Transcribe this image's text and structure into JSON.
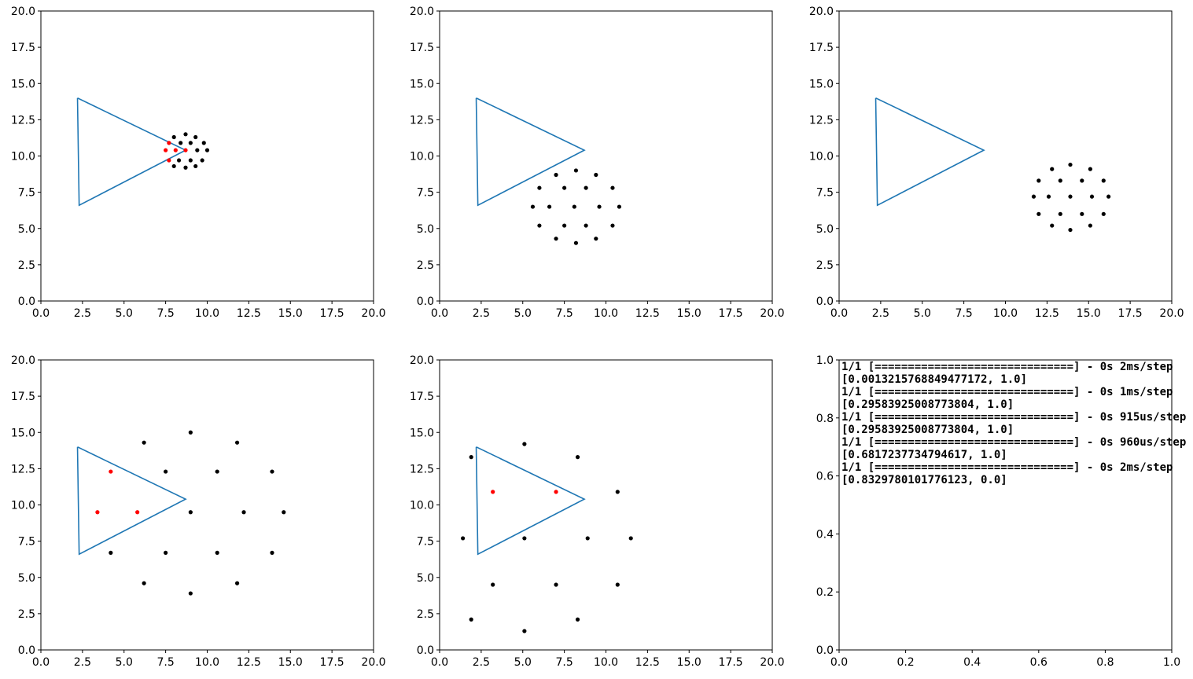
{
  "chart_data": [
    {
      "type": "scatter",
      "xlim": [
        0,
        20
      ],
      "ylim": [
        0,
        20
      ],
      "xticks": [
        "0.0",
        "2.5",
        "5.0",
        "7.5",
        "10.0",
        "12.5",
        "15.0",
        "17.5",
        "20.0"
      ],
      "yticks": [
        "0.0",
        "2.5",
        "5.0",
        "7.5",
        "10.0",
        "12.5",
        "15.0",
        "17.5",
        "20.0"
      ],
      "grid": false,
      "colors": {
        "triangle": "#1f77b4",
        "outside": "#000000",
        "inside": "#ff0000"
      },
      "triangle": [
        [
          2.2,
          14.0
        ],
        [
          2.3,
          6.6
        ],
        [
          8.7,
          10.4
        ]
      ],
      "points_outside": [
        [
          8.7,
          11.5
        ],
        [
          8.0,
          11.3
        ],
        [
          9.3,
          11.3
        ],
        [
          8.4,
          10.9
        ],
        [
          9.0,
          10.9
        ],
        [
          9.8,
          10.9
        ],
        [
          9.4,
          10.4
        ],
        [
          10.0,
          10.4
        ],
        [
          8.3,
          9.7
        ],
        [
          9.0,
          9.7
        ],
        [
          9.7,
          9.7
        ],
        [
          8.0,
          9.3
        ],
        [
          9.3,
          9.3
        ],
        [
          8.7,
          9.2
        ]
      ],
      "points_inside": [
        [
          7.7,
          10.9
        ],
        [
          7.5,
          10.4
        ],
        [
          8.1,
          10.4
        ],
        [
          8.7,
          10.4
        ],
        [
          7.7,
          9.7
        ]
      ]
    },
    {
      "type": "scatter",
      "xlim": [
        0,
        20
      ],
      "ylim": [
        0,
        20
      ],
      "xticks": [
        "0.0",
        "2.5",
        "5.0",
        "7.5",
        "10.0",
        "12.5",
        "15.0",
        "17.5",
        "20.0"
      ],
      "yticks": [
        "0.0",
        "2.5",
        "5.0",
        "7.5",
        "10.0",
        "12.5",
        "15.0",
        "17.5",
        "20.0"
      ],
      "grid": false,
      "colors": {
        "triangle": "#1f77b4",
        "outside": "#000000",
        "inside": "#ff0000"
      },
      "triangle": [
        [
          2.2,
          14.0
        ],
        [
          2.3,
          6.6
        ],
        [
          8.7,
          10.4
        ]
      ],
      "points_outside": [
        [
          8.2,
          9.0
        ],
        [
          7.0,
          8.7
        ],
        [
          9.4,
          8.7
        ],
        [
          6.0,
          7.8
        ],
        [
          7.5,
          7.8
        ],
        [
          8.8,
          7.8
        ],
        [
          10.4,
          7.8
        ],
        [
          5.6,
          6.5
        ],
        [
          6.6,
          6.5
        ],
        [
          8.1,
          6.5
        ],
        [
          9.6,
          6.5
        ],
        [
          10.8,
          6.5
        ],
        [
          6.0,
          5.2
        ],
        [
          7.5,
          5.2
        ],
        [
          8.8,
          5.2
        ],
        [
          10.4,
          5.2
        ],
        [
          7.0,
          4.3
        ],
        [
          9.4,
          4.3
        ],
        [
          8.2,
          4.0
        ]
      ],
      "points_inside": []
    },
    {
      "type": "scatter",
      "xlim": [
        0,
        20
      ],
      "ylim": [
        0,
        20
      ],
      "xticks": [
        "0.0",
        "2.5",
        "5.0",
        "7.5",
        "10.0",
        "12.5",
        "15.0",
        "17.5",
        "20.0"
      ],
      "yticks": [
        "0.0",
        "2.5",
        "5.0",
        "7.5",
        "10.0",
        "12.5",
        "15.0",
        "17.5",
        "20.0"
      ],
      "grid": false,
      "colors": {
        "triangle": "#1f77b4",
        "outside": "#000000",
        "inside": "#ff0000"
      },
      "triangle": [
        [
          2.2,
          14.0
        ],
        [
          2.3,
          6.6
        ],
        [
          8.7,
          10.4
        ]
      ],
      "points_outside": [
        [
          13.9,
          9.4
        ],
        [
          12.8,
          9.1
        ],
        [
          15.1,
          9.1
        ],
        [
          12.0,
          8.3
        ],
        [
          13.3,
          8.3
        ],
        [
          14.6,
          8.3
        ],
        [
          15.9,
          8.3
        ],
        [
          11.7,
          7.2
        ],
        [
          12.6,
          7.2
        ],
        [
          13.9,
          7.2
        ],
        [
          15.2,
          7.2
        ],
        [
          16.2,
          7.2
        ],
        [
          12.0,
          6.0
        ],
        [
          13.3,
          6.0
        ],
        [
          14.6,
          6.0
        ],
        [
          15.9,
          6.0
        ],
        [
          12.8,
          5.2
        ],
        [
          15.1,
          5.2
        ],
        [
          13.9,
          4.9
        ]
      ],
      "points_inside": []
    },
    {
      "type": "scatter",
      "xlim": [
        0,
        20
      ],
      "ylim": [
        0,
        20
      ],
      "xticks": [
        "0.0",
        "2.5",
        "5.0",
        "7.5",
        "10.0",
        "12.5",
        "15.0",
        "17.5",
        "20.0"
      ],
      "yticks": [
        "0.0",
        "2.5",
        "5.0",
        "7.5",
        "10.0",
        "12.5",
        "15.0",
        "17.5",
        "20.0"
      ],
      "grid": false,
      "colors": {
        "triangle": "#1f77b4",
        "outside": "#000000",
        "inside": "#ff0000"
      },
      "triangle": [
        [
          2.2,
          14.0
        ],
        [
          2.3,
          6.6
        ],
        [
          8.7,
          10.4
        ]
      ],
      "points_outside": [
        [
          9.0,
          15.0
        ],
        [
          6.2,
          14.3
        ],
        [
          11.8,
          14.3
        ],
        [
          7.5,
          12.3
        ],
        [
          10.6,
          12.3
        ],
        [
          13.9,
          12.3
        ],
        [
          9.0,
          9.5
        ],
        [
          12.2,
          9.5
        ],
        [
          14.6,
          9.5
        ],
        [
          4.2,
          6.7
        ],
        [
          7.5,
          6.7
        ],
        [
          10.6,
          6.7
        ],
        [
          13.9,
          6.7
        ],
        [
          6.2,
          4.6
        ],
        [
          11.8,
          4.6
        ],
        [
          9.0,
          3.9
        ]
      ],
      "points_inside": [
        [
          4.2,
          12.3
        ],
        [
          3.4,
          9.5
        ],
        [
          5.8,
          9.5
        ]
      ]
    },
    {
      "type": "scatter",
      "xlim": [
        0,
        20
      ],
      "ylim": [
        0,
        20
      ],
      "xticks": [
        "0.0",
        "2.5",
        "5.0",
        "7.5",
        "10.0",
        "12.5",
        "15.0",
        "17.5",
        "20.0"
      ],
      "yticks": [
        "0.0",
        "2.5",
        "5.0",
        "7.5",
        "10.0",
        "12.5",
        "15.0",
        "17.5",
        "20.0"
      ],
      "grid": false,
      "colors": {
        "triangle": "#1f77b4",
        "outside": "#000000",
        "inside": "#ff0000"
      },
      "triangle": [
        [
          2.2,
          14.0
        ],
        [
          2.3,
          6.6
        ],
        [
          8.7,
          10.4
        ]
      ],
      "points_outside": [
        [
          5.1,
          14.2
        ],
        [
          1.9,
          13.3
        ],
        [
          8.3,
          13.3
        ],
        [
          10.7,
          10.9
        ],
        [
          1.4,
          7.7
        ],
        [
          5.1,
          7.7
        ],
        [
          8.9,
          7.7
        ],
        [
          11.5,
          7.7
        ],
        [
          3.2,
          4.5
        ],
        [
          7.0,
          4.5
        ],
        [
          10.7,
          4.5
        ],
        [
          1.9,
          2.1
        ],
        [
          8.3,
          2.1
        ],
        [
          5.1,
          1.3
        ]
      ],
      "points_inside": [
        [
          3.2,
          10.9
        ],
        [
          7.0,
          10.9
        ]
      ]
    },
    {
      "type": "table",
      "xlim": [
        0,
        1
      ],
      "ylim": [
        0,
        1
      ],
      "xticks": [
        "0.0",
        "0.2",
        "0.4",
        "0.6",
        "0.8",
        "1.0"
      ],
      "yticks": [
        "0.0",
        "0.2",
        "0.4",
        "0.6",
        "0.8",
        "1.0"
      ],
      "grid": false,
      "log_lines": [
        "1/1 [==============================] - 0s 2ms/step",
        "[0.0013215768849477172, 1.0]",
        "1/1 [==============================] - 0s 1ms/step",
        "[0.29583925008773804, 1.0]",
        "1/1 [==============================] - 0s 915us/step",
        "[0.29583925008773804, 1.0]",
        "1/1 [==============================] - 0s 960us/step",
        "[0.6817237734794617, 1.0]",
        "1/1 [==============================] - 0s 2ms/step",
        "[0.8329780101776123, 0.0]"
      ]
    }
  ]
}
